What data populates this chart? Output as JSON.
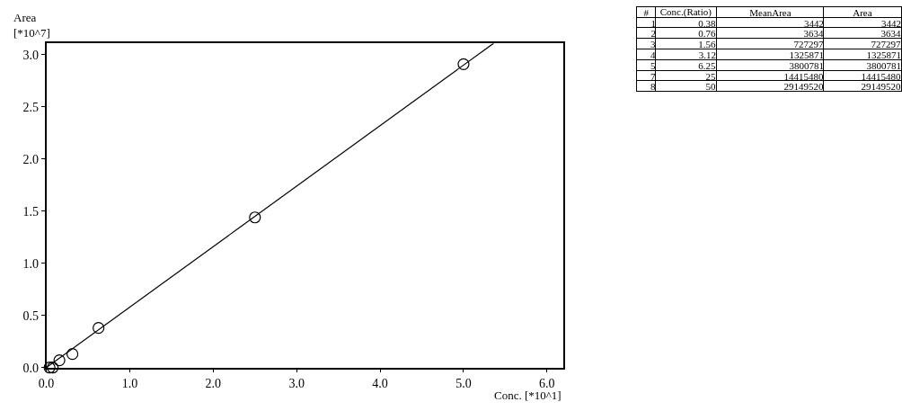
{
  "chart_data": {
    "type": "scatter",
    "xlabel": "Conc. [*10^1]",
    "ylabel": "Area\n[*10^7]",
    "x": [
      0.038,
      0.076,
      0.156,
      0.312,
      0.625,
      2.5,
      5.0
    ],
    "series": [
      {
        "color": "#000000",
        "marker": "circle",
        "values": [
          0.0,
          0.0,
          0.07,
          0.13,
          0.38,
          1.44,
          2.91
        ]
      },
      {
        "type": "line",
        "color": "#000000",
        "marker": "none",
        "line_style": "solid",
        "x": [
          0,
          5.36
        ],
        "values": [
          0,
          3.11
        ]
      }
    ],
    "xlim": [
      0,
      6.2
    ],
    "xticks": [
      {
        "value": 0,
        "label": "0.0"
      },
      {
        "value": 1,
        "label": "1.0"
      },
      {
        "value": 2,
        "label": "2.0"
      },
      {
        "value": 3,
        "label": "3.0"
      },
      {
        "value": 4,
        "label": "4.0"
      },
      {
        "value": 5,
        "label": "5.0"
      },
      {
        "value": 6,
        "label": "6.0"
      }
    ],
    "ylim": [
      0,
      3.11
    ],
    "yticks": [
      {
        "value": 0,
        "label": "0.0"
      },
      {
        "value": 0.5,
        "label": "0.5"
      },
      {
        "value": 1,
        "label": "1.0"
      },
      {
        "value": 1.5,
        "label": "1.5"
      },
      {
        "value": 2,
        "label": "2.0"
      },
      {
        "value": 2.5,
        "label": "2.5"
      },
      {
        "value": 3,
        "label": "3.0"
      }
    ],
    "annotations": [
      "#",
      "Conc.(Ratio)",
      "MeanArea",
      "Area",
      "1",
      "2",
      "3",
      "4",
      "5",
      "7",
      "8",
      "0.38",
      "0.76",
      "1.56",
      "3.12",
      "6.25",
      "25",
      "50",
      "3442",
      "3634",
      "727297",
      "1325871",
      "3800781",
      "14415480",
      "29149520",
      "3442",
      "3634",
      "727297",
      "1325871",
      "3800781",
      "14415480",
      "29149520"
    ]
  }
}
